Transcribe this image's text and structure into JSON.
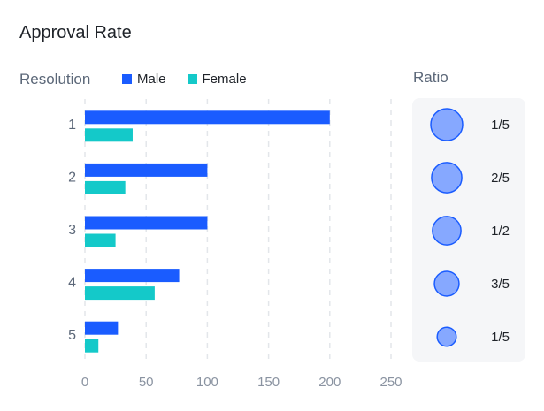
{
  "chart_data": {
    "type": "bar",
    "orientation": "horizontal",
    "title": "Approval Rate",
    "ylabel": "Resolution",
    "xlabel": "",
    "categories": [
      "1",
      "2",
      "3",
      "4",
      "5"
    ],
    "series": [
      {
        "name": "Male",
        "color": "#1a5cff",
        "values": [
          200,
          100,
          100,
          77,
          27
        ]
      },
      {
        "name": "Female",
        "color": "#14c9c9",
        "values": [
          39,
          33,
          25,
          57,
          11
        ]
      }
    ],
    "xlim": [
      0,
      250
    ],
    "xticks": [
      "0",
      "50",
      "100",
      "150",
      "200",
      "250"
    ],
    "grid": "vertical-dashed",
    "legend": "top",
    "ratio": {
      "title": "Ratio",
      "items": [
        {
          "label": "1/5",
          "size": 5
        },
        {
          "label": "2/5",
          "size": 4.5
        },
        {
          "label": "1/2",
          "size": 4
        },
        {
          "label": "3/5",
          "size": 3
        },
        {
          "label": "1/5",
          "size": 1.8
        }
      ],
      "fill": "#86a8ff",
      "stroke": "#1a5cff"
    }
  }
}
